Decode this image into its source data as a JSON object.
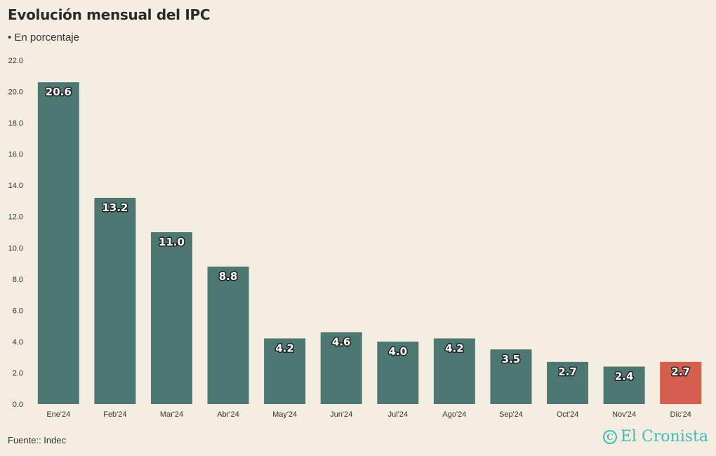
{
  "header": {
    "title": "Evolución mensual del IPC",
    "subtitle": "• En porcentaje"
  },
  "footer": {
    "source": "Fuente:: Indec",
    "brand": "El Cronista",
    "brand_icon": "copyright-circle-icon",
    "brand_icon_glyph": "C"
  },
  "colors": {
    "bar": "#4d7872",
    "highlight": "#d45f4c",
    "brand": "#3dbdb3",
    "background": "#f4ede2"
  },
  "chart_data": {
    "type": "bar",
    "categories": [
      "Ene'24",
      "Feb'24",
      "Mar'24",
      "Abr'24",
      "May'24",
      "Jun'24",
      "Jul'24",
      "Ago'24",
      "Sep'24",
      "Oct'24",
      "Nov'24",
      "Dic'24"
    ],
    "values": [
      20.6,
      13.2,
      11.0,
      8.8,
      4.2,
      4.6,
      4.0,
      4.2,
      3.5,
      2.7,
      2.4,
      2.7
    ],
    "value_labels": [
      "20.6",
      "13.2",
      "11.0",
      "8.8",
      "4.2",
      "4.6",
      "4.0",
      "4.2",
      "3.5",
      "2.7",
      "2.4",
      "2.7"
    ],
    "highlight_index": 11,
    "y_ticks": [
      "0.0",
      "2.0",
      "4.0",
      "6.0",
      "8.0",
      "10.0",
      "12.0",
      "14.0",
      "16.0",
      "18.0",
      "20.0",
      "22.0"
    ],
    "ylim": [
      0,
      22
    ],
    "xlabel": "",
    "ylabel": "",
    "grid": false,
    "legend": "none"
  }
}
